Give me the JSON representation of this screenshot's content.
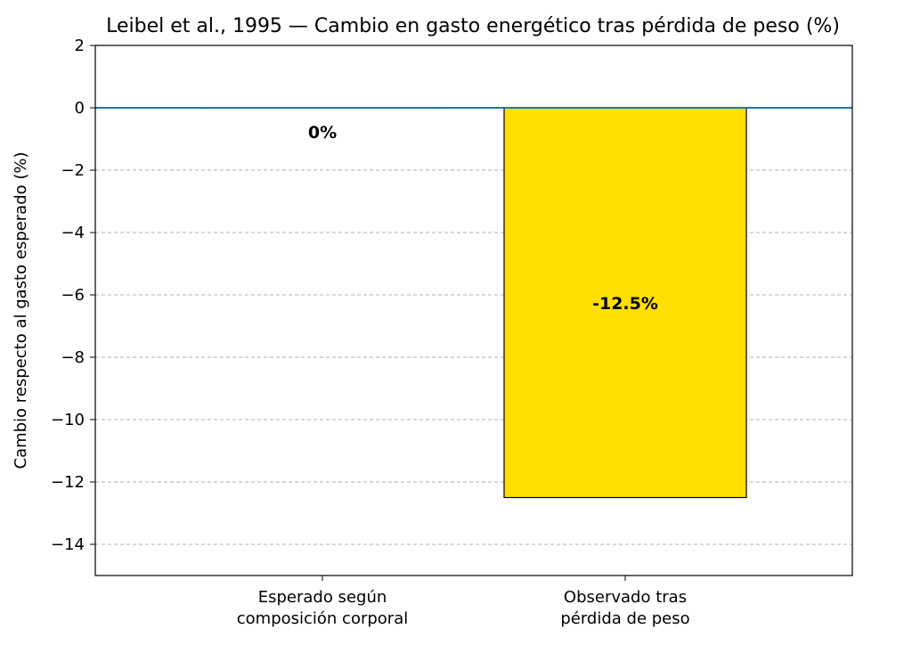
{
  "chart_data": {
    "type": "bar",
    "title": "Leibel et al., 1995 — Cambio en gasto energético tras pérdida de peso (%)",
    "xlabel": "",
    "ylabel": "Cambio respecto al gasto esperado (%)",
    "categories": [
      [
        "Esperado según",
        "composición corporal"
      ],
      [
        "Observado tras",
        "pérdida de peso"
      ]
    ],
    "values": [
      0,
      -12.5
    ],
    "value_labels": [
      "0%",
      "-12.5%"
    ],
    "bar_colors": [
      "#ffffff",
      "#ffe000"
    ],
    "bar_edge_color": "#000000",
    "reference_line": {
      "y": 0,
      "color": "#1f77b4"
    },
    "ylim": [
      -15,
      2
    ],
    "yticks": [
      2,
      0,
      -2,
      -4,
      -6,
      -8,
      -10,
      -12,
      -14
    ],
    "ytick_labels": [
      "2",
      "0",
      "−2",
      "−4",
      "−6",
      "−8",
      "−10",
      "−12",
      "−14"
    ],
    "grid": {
      "axis": "y",
      "style": "dashed",
      "color": "#b0b0b0"
    },
    "legend": null
  }
}
